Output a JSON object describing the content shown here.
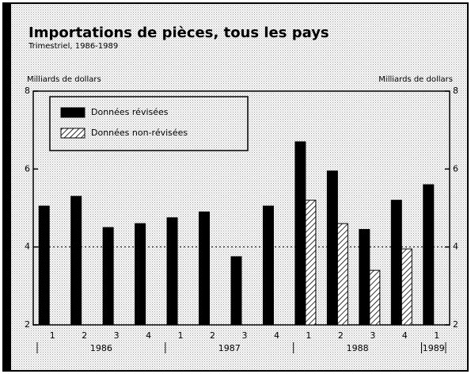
{
  "chart_data": {
    "type": "bar",
    "title": "Importations de pièces, tous les pays",
    "subtitle": "Trimestriel, 1986-1989",
    "y_label": "Milliards de dollars",
    "y2_label": "Milliards de dollars",
    "categories": [
      "1",
      "2",
      "3",
      "4",
      "1",
      "2",
      "3",
      "4",
      "1",
      "2",
      "3",
      "4",
      "1"
    ],
    "year_labels": [
      "1986",
      "1987",
      "1988",
      "1989"
    ],
    "series": [
      {
        "name": "Données révisées",
        "color": "#000000",
        "values": [
          5.05,
          5.3,
          4.5,
          4.6,
          4.75,
          4.9,
          3.75,
          5.05,
          6.7,
          5.95,
          4.45,
          5.2,
          5.6
        ]
      },
      {
        "name": "Données non-révisées",
        "color": "#000000",
        "pattern": "hatch",
        "values": [
          null,
          null,
          null,
          null,
          null,
          null,
          null,
          null,
          5.2,
          4.6,
          3.4,
          3.95,
          null
        ]
      }
    ],
    "ylim": [
      2,
      8
    ],
    "yticks": [
      2,
      4,
      6,
      8
    ],
    "y2lim": [
      2,
      8
    ],
    "y2ticks": [
      2,
      4,
      6,
      8
    ],
    "gridlines": [
      4
    ],
    "legend": "top-left"
  }
}
